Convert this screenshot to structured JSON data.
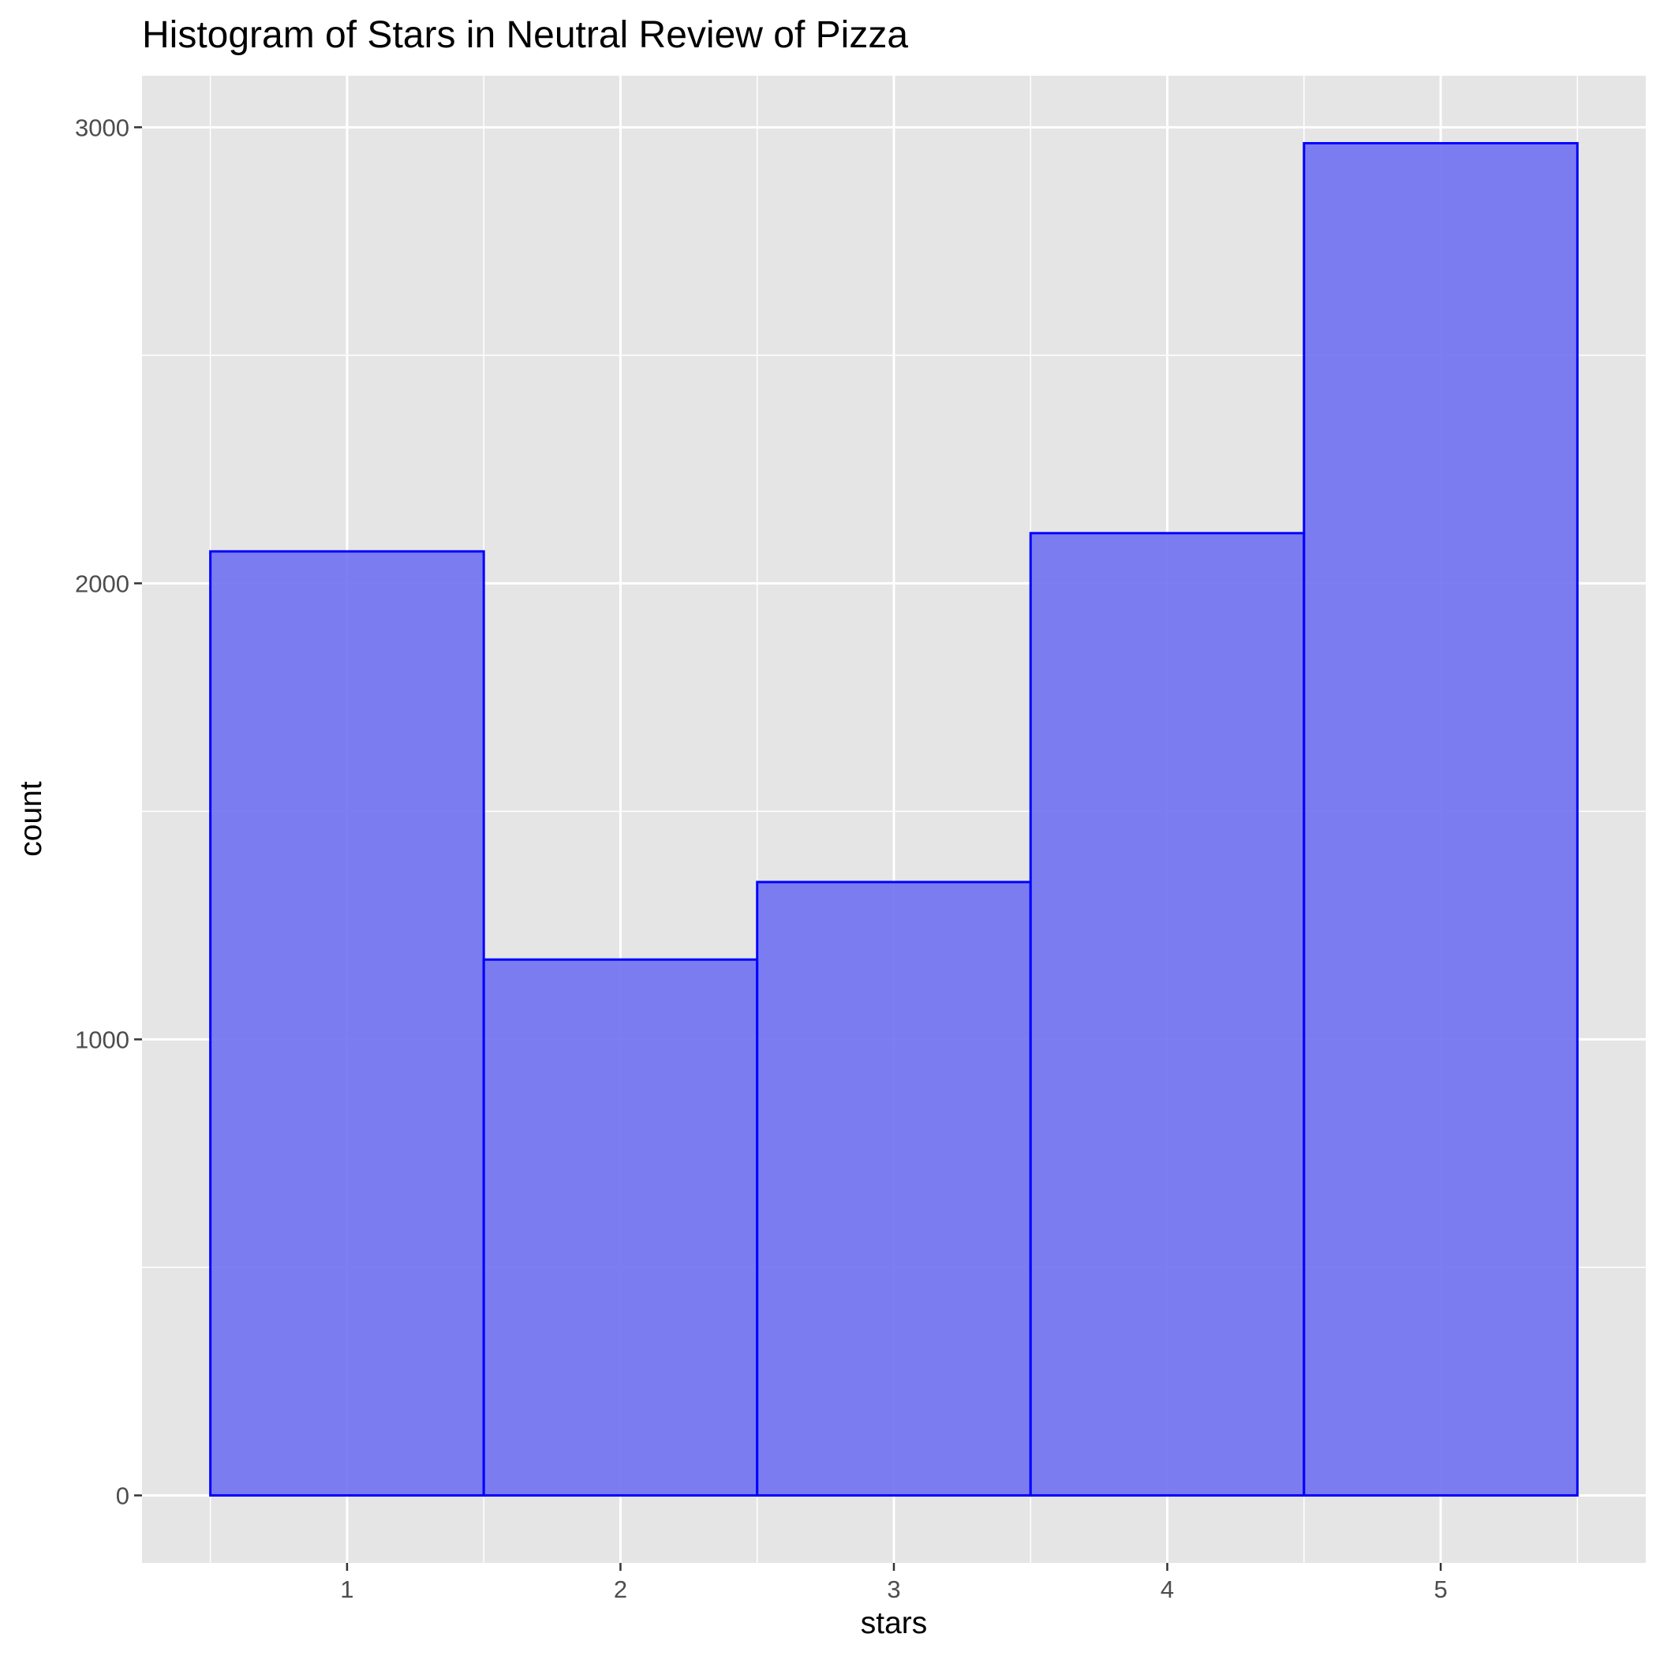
{
  "chart_data": {
    "type": "bar",
    "title": "Histogram of Stars in Neutral Review of Pizza",
    "xlabel": "stars",
    "ylabel": "count",
    "categories": [
      "1",
      "2",
      "3",
      "4",
      "5"
    ],
    "x": [
      1,
      2,
      3,
      4,
      5
    ],
    "bin_width": 1,
    "values": [
      2070,
      1175,
      1345,
      2110,
      2965
    ],
    "xlim": [
      0.25,
      5.75
    ],
    "ylim": [
      -148,
      3113
    ],
    "x_ticks": [
      1,
      2,
      3,
      4,
      5
    ],
    "y_ticks": [
      0,
      1000,
      2000,
      3000
    ],
    "y_tick_labels": [
      "0",
      "1000",
      "2000",
      "3000"
    ],
    "grid": true,
    "legend": "none",
    "colors": {
      "panel_background": "#E5E5E5",
      "grid_line": "#FFFFFF",
      "bar_fill": "#7373F2",
      "bar_outline": "#0000FF",
      "tick_label": "#4D4D4D",
      "text": "#000000"
    }
  }
}
